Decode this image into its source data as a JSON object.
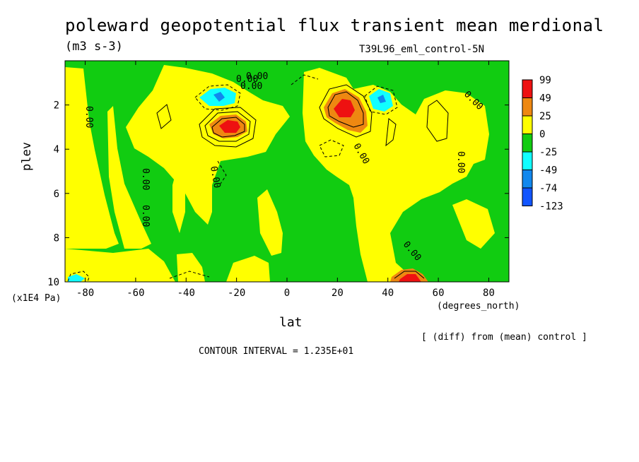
{
  "chart_data": {
    "type": "heatmap",
    "title": "poleward geopotential flux transient mean merdional",
    "subtitle": "(m3 s-3)",
    "run_label": "T39L96_eml_control-5N",
    "xlabel": "lat",
    "x_unit_label": "(degrees_north)",
    "ylabel": "plev",
    "y_unit_label": "(x1E4 Pa)",
    "xlim": [
      -88,
      88
    ],
    "ylim": [
      0,
      10
    ],
    "y_inverted": true,
    "x_ticks": [
      "-80",
      "-60",
      "-40",
      "-20",
      "0",
      "20",
      "40",
      "60",
      "80"
    ],
    "x_tick_values": [
      -80,
      -60,
      -40,
      -20,
      0,
      20,
      40,
      60,
      80
    ],
    "y_ticks": [
      "2",
      "4",
      "6",
      "8",
      "10"
    ],
    "y_tick_values": [
      2,
      4,
      6,
      8,
      10
    ],
    "legend": {
      "placement": "right",
      "labels": [
        "99",
        "49",
        "25",
        "0",
        "-25",
        "-49",
        "-74",
        "-123"
      ],
      "colors": [
        "#ee1111",
        "#ee8811",
        "#ffff00",
        "#11cc11",
        "#11ffff",
        "#1188ee",
        "#1155ff"
      ]
    },
    "contour_labels": [
      "0.00",
      "0.00",
      "0.00",
      "0.00",
      "0.00",
      "0.00",
      "0.00",
      "0.00",
      "0.00",
      "0.00",
      "0.00"
    ],
    "annotations": [
      "[ (diff) from (mean) control ]",
      "CONTOUR INTERVAL = 1.235E+01"
    ],
    "features": [
      {
        "lat": -24,
        "plev": 3.0,
        "value": 75
      },
      {
        "lat": 25,
        "plev": 2.4,
        "value": 99
      },
      {
        "lat": 50,
        "plev": 10.0,
        "value": 60
      },
      {
        "lat": -30,
        "plev": 1.6,
        "value": -35
      },
      {
        "lat": 38,
        "plev": 1.9,
        "value": -30
      }
    ]
  }
}
